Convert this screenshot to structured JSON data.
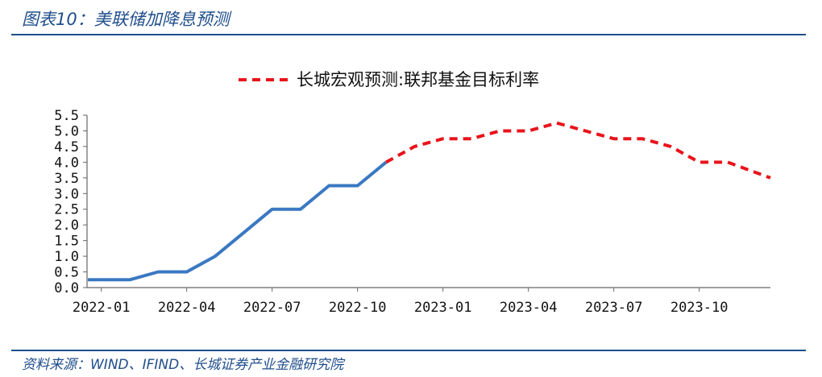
{
  "header": {
    "title": "图表10：美联储加降息预测"
  },
  "footer": {
    "source": "资料来源：WIND、IFIND、长城证券产业金融研究院"
  },
  "colors": {
    "actual": "#3a78c2",
    "forecast": "#e8141b",
    "accent": "#1f4e8c"
  },
  "chart_data": {
    "type": "line",
    "title": "",
    "xlabel": "",
    "ylabel": "",
    "ylim": [
      0,
      5.5
    ],
    "yticks": [
      "0.0",
      "0.5",
      "1.0",
      "1.5",
      "2.0",
      "2.5",
      "3.0",
      "3.5",
      "4.0",
      "4.5",
      "5.0",
      "5.5"
    ],
    "xticks": [
      "2022-01",
      "2022-04",
      "2022-07",
      "2022-10",
      "2023-01",
      "2023-04",
      "2023-07",
      "2023-10"
    ],
    "x": [
      "2022-01",
      "2022-02",
      "2022-03",
      "2022-04",
      "2022-05",
      "2022-06",
      "2022-07",
      "2022-08",
      "2022-09",
      "2022-10",
      "2022-11",
      "2022-12",
      "2023-01",
      "2023-02",
      "2023-03",
      "2023-04",
      "2023-05",
      "2023-06",
      "2023-07",
      "2023-08",
      "2023-09",
      "2023-10",
      "2023-11",
      "2023-12"
    ],
    "legend": {
      "position": "top-right",
      "entries": [
        "长城宏观预测:联邦基金目标利率"
      ]
    },
    "grid": false,
    "series": [
      {
        "name": "",
        "style": "solid",
        "values": [
          0.25,
          0.25,
          0.5,
          0.5,
          1.0,
          1.75,
          2.5,
          2.5,
          3.25,
          3.25,
          4.0,
          null,
          null,
          null,
          null,
          null,
          null,
          null,
          null,
          null,
          null,
          null,
          null,
          null
        ]
      },
      {
        "name": "长城宏观预测:联邦基金目标利率",
        "style": "dashed",
        "values": [
          null,
          null,
          null,
          null,
          null,
          null,
          null,
          null,
          null,
          null,
          4.0,
          4.5,
          4.75,
          4.75,
          5.0,
          5.0,
          5.25,
          5.0,
          4.75,
          4.75,
          4.5,
          4.0,
          4.0,
          3.5
        ]
      }
    ]
  }
}
